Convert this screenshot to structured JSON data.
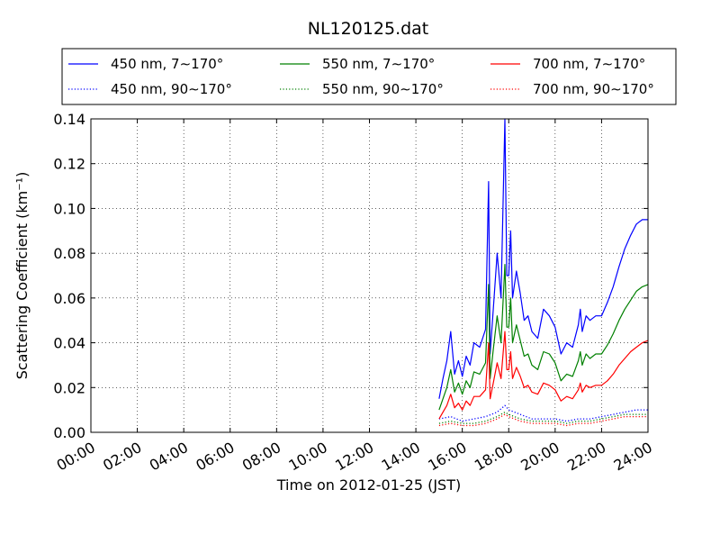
{
  "chart_data": {
    "type": "line",
    "title": "NL120125.dat",
    "xlabel": "Time on 2012-01-25 (JST)",
    "ylabel": "Scattering Coefficient (km⁻¹)",
    "xlim": [
      "00:00",
      "24:00"
    ],
    "ylim": [
      0,
      0.14
    ],
    "xticks": [
      "00:00",
      "02:00",
      "04:00",
      "06:00",
      "08:00",
      "10:00",
      "12:00",
      "14:00",
      "16:00",
      "18:00",
      "20:00",
      "22:00",
      "24:00"
    ],
    "yticks": [
      "0.00",
      "0.02",
      "0.04",
      "0.06",
      "0.08",
      "0.10",
      "0.12",
      "0.14"
    ],
    "grid": true,
    "legend_placement": "top, above plot, 3 columns",
    "series": [
      {
        "name": "450 nm, 7∼170°",
        "color": "#0000ff",
        "style": "solid",
        "points": [
          [
            "15:00",
            0.015
          ],
          [
            "15:10",
            0.024
          ],
          [
            "15:20",
            0.032
          ],
          [
            "15:30",
            0.045
          ],
          [
            "15:40",
            0.026
          ],
          [
            "15:50",
            0.032
          ],
          [
            "16:00",
            0.025
          ],
          [
            "16:10",
            0.034
          ],
          [
            "16:20",
            0.03
          ],
          [
            "16:30",
            0.04
          ],
          [
            "16:45",
            0.038
          ],
          [
            "17:00",
            0.046
          ],
          [
            "17:08",
            0.112
          ],
          [
            "17:12",
            0.035
          ],
          [
            "17:20",
            0.055
          ],
          [
            "17:30",
            0.08
          ],
          [
            "17:40",
            0.06
          ],
          [
            "17:50",
            0.14
          ],
          [
            "17:55",
            0.07
          ],
          [
            "18:00",
            0.07
          ],
          [
            "18:05",
            0.09
          ],
          [
            "18:10",
            0.06
          ],
          [
            "18:20",
            0.072
          ],
          [
            "18:30",
            0.062
          ],
          [
            "18:40",
            0.05
          ],
          [
            "18:50",
            0.052
          ],
          [
            "19:00",
            0.045
          ],
          [
            "19:15",
            0.042
          ],
          [
            "19:30",
            0.055
          ],
          [
            "19:45",
            0.052
          ],
          [
            "20:00",
            0.047
          ],
          [
            "20:15",
            0.035
          ],
          [
            "20:30",
            0.04
          ],
          [
            "20:45",
            0.038
          ],
          [
            "21:00",
            0.048
          ],
          [
            "21:05",
            0.055
          ],
          [
            "21:10",
            0.045
          ],
          [
            "21:20",
            0.052
          ],
          [
            "21:30",
            0.05
          ],
          [
            "21:45",
            0.052
          ],
          [
            "22:00",
            0.052
          ],
          [
            "22:15",
            0.058
          ],
          [
            "22:30",
            0.065
          ],
          [
            "22:45",
            0.074
          ],
          [
            "23:00",
            0.082
          ],
          [
            "23:15",
            0.088
          ],
          [
            "23:30",
            0.093
          ],
          [
            "23:45",
            0.095
          ],
          [
            "24:00",
            0.095
          ]
        ]
      },
      {
        "name": "550 nm, 7∼170°",
        "color": "#008000",
        "style": "solid",
        "points": [
          [
            "15:00",
            0.01
          ],
          [
            "15:10",
            0.015
          ],
          [
            "15:20",
            0.02
          ],
          [
            "15:30",
            0.028
          ],
          [
            "15:40",
            0.018
          ],
          [
            "15:50",
            0.022
          ],
          [
            "16:00",
            0.017
          ],
          [
            "16:10",
            0.023
          ],
          [
            "16:20",
            0.02
          ],
          [
            "16:30",
            0.027
          ],
          [
            "16:45",
            0.026
          ],
          [
            "17:00",
            0.031
          ],
          [
            "17:08",
            0.066
          ],
          [
            "17:12",
            0.024
          ],
          [
            "17:20",
            0.037
          ],
          [
            "17:30",
            0.052
          ],
          [
            "17:40",
            0.04
          ],
          [
            "17:50",
            0.075
          ],
          [
            "17:55",
            0.047
          ],
          [
            "18:00",
            0.047
          ],
          [
            "18:05",
            0.06
          ],
          [
            "18:10",
            0.04
          ],
          [
            "18:20",
            0.048
          ],
          [
            "18:30",
            0.041
          ],
          [
            "18:40",
            0.034
          ],
          [
            "18:50",
            0.035
          ],
          [
            "19:00",
            0.03
          ],
          [
            "19:15",
            0.028
          ],
          [
            "19:30",
            0.036
          ],
          [
            "19:45",
            0.035
          ],
          [
            "20:00",
            0.031
          ],
          [
            "20:15",
            0.023
          ],
          [
            "20:30",
            0.026
          ],
          [
            "20:45",
            0.025
          ],
          [
            "21:00",
            0.032
          ],
          [
            "21:05",
            0.036
          ],
          [
            "21:10",
            0.03
          ],
          [
            "21:20",
            0.035
          ],
          [
            "21:30",
            0.033
          ],
          [
            "21:45",
            0.035
          ],
          [
            "22:00",
            0.035
          ],
          [
            "22:15",
            0.039
          ],
          [
            "22:30",
            0.044
          ],
          [
            "22:45",
            0.05
          ],
          [
            "23:00",
            0.055
          ],
          [
            "23:15",
            0.059
          ],
          [
            "23:30",
            0.063
          ],
          [
            "23:45",
            0.065
          ],
          [
            "24:00",
            0.066
          ]
        ]
      },
      {
        "name": "700 nm, 7∼170°",
        "color": "#ff0000",
        "style": "solid",
        "points": [
          [
            "15:00",
            0.006
          ],
          [
            "15:10",
            0.009
          ],
          [
            "15:20",
            0.012
          ],
          [
            "15:30",
            0.017
          ],
          [
            "15:40",
            0.011
          ],
          [
            "15:50",
            0.013
          ],
          [
            "16:00",
            0.01
          ],
          [
            "16:10",
            0.014
          ],
          [
            "16:20",
            0.012
          ],
          [
            "16:30",
            0.016
          ],
          [
            "16:45",
            0.016
          ],
          [
            "17:00",
            0.019
          ],
          [
            "17:08",
            0.04
          ],
          [
            "17:12",
            0.015
          ],
          [
            "17:20",
            0.022
          ],
          [
            "17:30",
            0.031
          ],
          [
            "17:40",
            0.024
          ],
          [
            "17:50",
            0.045
          ],
          [
            "17:55",
            0.028
          ],
          [
            "18:00",
            0.028
          ],
          [
            "18:05",
            0.036
          ],
          [
            "18:10",
            0.024
          ],
          [
            "18:20",
            0.029
          ],
          [
            "18:30",
            0.025
          ],
          [
            "18:40",
            0.02
          ],
          [
            "18:50",
            0.021
          ],
          [
            "19:00",
            0.018
          ],
          [
            "19:15",
            0.017
          ],
          [
            "19:30",
            0.022
          ],
          [
            "19:45",
            0.021
          ],
          [
            "20:00",
            0.019
          ],
          [
            "20:15",
            0.014
          ],
          [
            "20:30",
            0.016
          ],
          [
            "20:45",
            0.015
          ],
          [
            "21:00",
            0.019
          ],
          [
            "21:05",
            0.022
          ],
          [
            "21:10",
            0.018
          ],
          [
            "21:20",
            0.021
          ],
          [
            "21:30",
            0.02
          ],
          [
            "21:45",
            0.021
          ],
          [
            "22:00",
            0.021
          ],
          [
            "22:15",
            0.023
          ],
          [
            "22:30",
            0.026
          ],
          [
            "22:45",
            0.03
          ],
          [
            "23:00",
            0.033
          ],
          [
            "23:15",
            0.036
          ],
          [
            "23:30",
            0.038
          ],
          [
            "23:45",
            0.04
          ],
          [
            "24:00",
            0.041
          ]
        ]
      },
      {
        "name": "450 nm, 90∼170°",
        "color": "#0000ff",
        "style": "dotted",
        "points": [
          [
            "15:00",
            0.006
          ],
          [
            "15:30",
            0.007
          ],
          [
            "16:00",
            0.005
          ],
          [
            "16:30",
            0.006
          ],
          [
            "17:00",
            0.007
          ],
          [
            "17:30",
            0.009
          ],
          [
            "17:50",
            0.012
          ],
          [
            "18:00",
            0.01
          ],
          [
            "18:30",
            0.008
          ],
          [
            "19:00",
            0.006
          ],
          [
            "19:30",
            0.006
          ],
          [
            "20:00",
            0.006
          ],
          [
            "20:30",
            0.005
          ],
          [
            "21:00",
            0.006
          ],
          [
            "21:30",
            0.006
          ],
          [
            "22:00",
            0.007
          ],
          [
            "22:30",
            0.008
          ],
          [
            "23:00",
            0.009
          ],
          [
            "23:30",
            0.01
          ],
          [
            "24:00",
            0.01
          ]
        ]
      },
      {
        "name": "550 nm, 90∼170°",
        "color": "#008000",
        "style": "dotted",
        "points": [
          [
            "15:00",
            0.004
          ],
          [
            "15:30",
            0.005
          ],
          [
            "16:00",
            0.004
          ],
          [
            "16:30",
            0.004
          ],
          [
            "17:00",
            0.005
          ],
          [
            "17:30",
            0.007
          ],
          [
            "17:50",
            0.009
          ],
          [
            "18:00",
            0.008
          ],
          [
            "18:30",
            0.006
          ],
          [
            "19:00",
            0.005
          ],
          [
            "19:30",
            0.005
          ],
          [
            "20:00",
            0.005
          ],
          [
            "20:30",
            0.004
          ],
          [
            "21:00",
            0.005
          ],
          [
            "21:30",
            0.005
          ],
          [
            "22:00",
            0.006
          ],
          [
            "22:30",
            0.007
          ],
          [
            "23:00",
            0.008
          ],
          [
            "23:30",
            0.008
          ],
          [
            "24:00",
            0.008
          ]
        ]
      },
      {
        "name": "700 nm, 90∼170°",
        "color": "#ff0000",
        "style": "dotted",
        "points": [
          [
            "15:00",
            0.003
          ],
          [
            "15:30",
            0.004
          ],
          [
            "16:00",
            0.003
          ],
          [
            "16:30",
            0.003
          ],
          [
            "17:00",
            0.004
          ],
          [
            "17:30",
            0.006
          ],
          [
            "17:50",
            0.008
          ],
          [
            "18:00",
            0.007
          ],
          [
            "18:30",
            0.005
          ],
          [
            "19:00",
            0.004
          ],
          [
            "19:30",
            0.004
          ],
          [
            "20:00",
            0.004
          ],
          [
            "20:30",
            0.003
          ],
          [
            "21:00",
            0.004
          ],
          [
            "21:30",
            0.004
          ],
          [
            "22:00",
            0.005
          ],
          [
            "22:30",
            0.006
          ],
          [
            "23:00",
            0.007
          ],
          [
            "23:30",
            0.007
          ],
          [
            "24:00",
            0.007
          ]
        ]
      }
    ]
  }
}
